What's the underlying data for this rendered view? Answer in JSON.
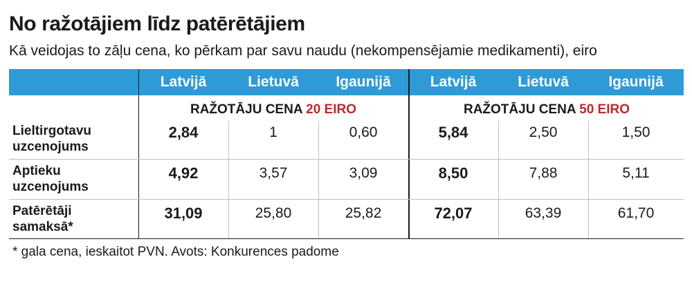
{
  "title": "No ražotājiem līdz patērētājiem",
  "subtitle": "Kā veidojas to zāļu cena, ko pērkam par savu naudu (nekompensējamie medikamenti), eiro",
  "columns": [
    "Latvijā",
    "Lietuvā",
    "Igaunijā",
    "Latvijā",
    "Lietuvā",
    "Igaunijā"
  ],
  "groups": [
    {
      "prefix": "RAŽOTĀJU CENA ",
      "highlight": "20 EIRO"
    },
    {
      "prefix": "RAŽOTĀJU CENA ",
      "highlight": "50 EIRO"
    }
  ],
  "rows": [
    {
      "label_line1": "Lieltirgotavu",
      "label_line2": "uzcenojums",
      "values": [
        "2,84",
        "1",
        "0,60",
        "5,84",
        "2,50",
        "1,50"
      ]
    },
    {
      "label_line1": "Aptieku",
      "label_line2": "uzcenojums",
      "values": [
        "4,92",
        "3,57",
        "3,09",
        "8,50",
        "7,88",
        "5,11"
      ]
    },
    {
      "label_line1": "Patērētāji",
      "label_line2": "samaksā*",
      "values": [
        "31,09",
        "25,80",
        "25,82",
        "72,07",
        "63,39",
        "61,70"
      ]
    }
  ],
  "footnote": "* gala cena, ieskaitot PVN. Avots: Konkurences padome",
  "chart_data": {
    "type": "table",
    "title": "No ražotājiem līdz patērētājiem",
    "subtitle": "Kā veidojas to zāļu cena, ko pērkam par savu naudu (nekompensējamie medikamenti), eiro",
    "column_groups": [
      "RAŽOTĀJU CENA 20 EIRO",
      "RAŽOTĀJU CENA 50 EIRO"
    ],
    "columns": [
      "Latvijā",
      "Lietuvā",
      "Igaunijā",
      "Latvijā",
      "Lietuvā",
      "Igaunijā"
    ],
    "rows": [
      "Lieltirgotavu uzcenojums",
      "Aptieku uzcenojums",
      "Patērētāji samaksā*"
    ],
    "values": [
      [
        2.84,
        1,
        0.6,
        5.84,
        2.5,
        1.5
      ],
      [
        4.92,
        3.57,
        3.09,
        8.5,
        7.88,
        5.11
      ],
      [
        31.09,
        25.8,
        25.82,
        72.07,
        63.39,
        61.7
      ]
    ]
  },
  "colors": {
    "header_bg": "#2e9bd6",
    "header_text": "#ffffff",
    "highlight": "#c0282e",
    "text": "#1a1a1a"
  }
}
